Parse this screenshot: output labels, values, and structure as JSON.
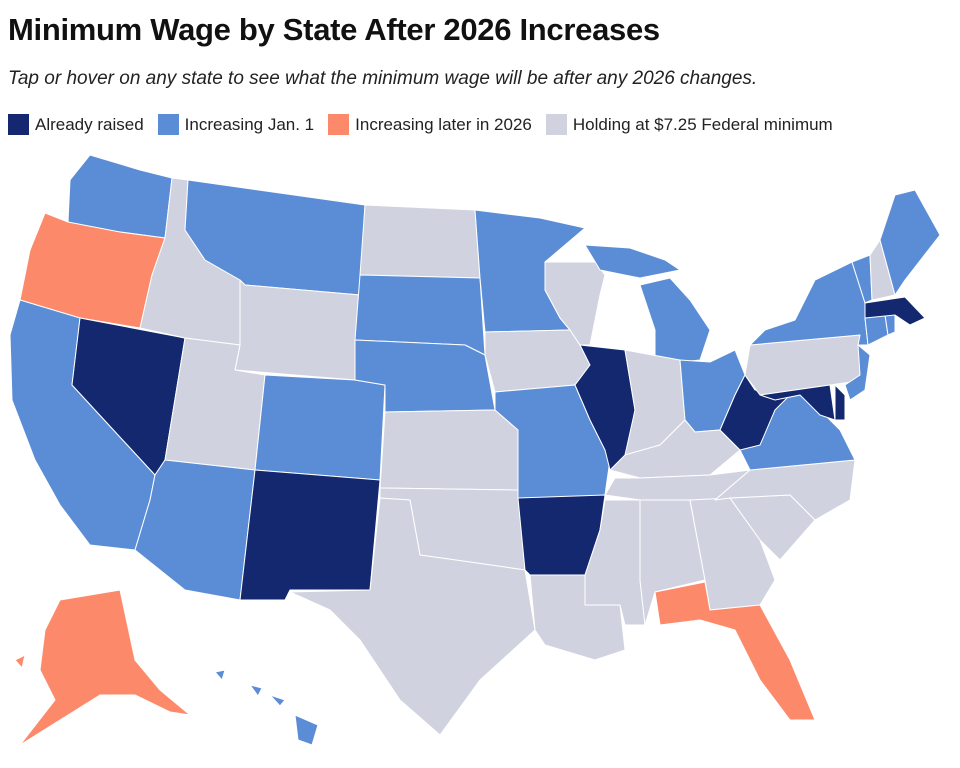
{
  "title": "Minimum Wage by State After 2026 Increases",
  "subtitle": "Tap or hover on any state to see what the minimum wage will be after any 2026 changes.",
  "legend": [
    {
      "key": "raised",
      "label": "Already raised",
      "color": "#13286e"
    },
    {
      "key": "jan",
      "label": "Increasing Jan. 1",
      "color": "#5b8dd6"
    },
    {
      "key": "later",
      "label": "Increasing later in 2026",
      "color": "#fc8a6a"
    },
    {
      "key": "hold",
      "label": "Holding at $7.25 Federal minimum",
      "color": "#d0d3df"
    }
  ],
  "states": {
    "WA": "jan",
    "OR": "later",
    "CA": "jan",
    "NV": "raised",
    "ID": "hold",
    "MT": "jan",
    "WY": "hold",
    "UT": "hold",
    "CO": "jan",
    "AZ": "jan",
    "NM": "raised",
    "ND": "hold",
    "SD": "jan",
    "NE": "jan",
    "KS": "hold",
    "OK": "hold",
    "TX": "hold",
    "MN": "jan",
    "IA": "hold",
    "MO": "jan",
    "AR": "raised",
    "LA": "hold",
    "WI": "hold",
    "IL": "raised",
    "MI": "jan",
    "IN": "hold",
    "OH": "jan",
    "KY": "hold",
    "TN": "hold",
    "MS": "hold",
    "AL": "hold",
    "GA": "hold",
    "FL": "later",
    "SC": "hold",
    "NC": "hold",
    "VA": "jan",
    "WV": "raised",
    "PA": "hold",
    "MD": "raised",
    "DE": "raised",
    "NJ": "jan",
    "NY": "jan",
    "CT": "jan",
    "RI": "jan",
    "MA": "raised",
    "VT": "jan",
    "NH": "hold",
    "ME": "jan",
    "AK": "later",
    "HI": "jan"
  }
}
